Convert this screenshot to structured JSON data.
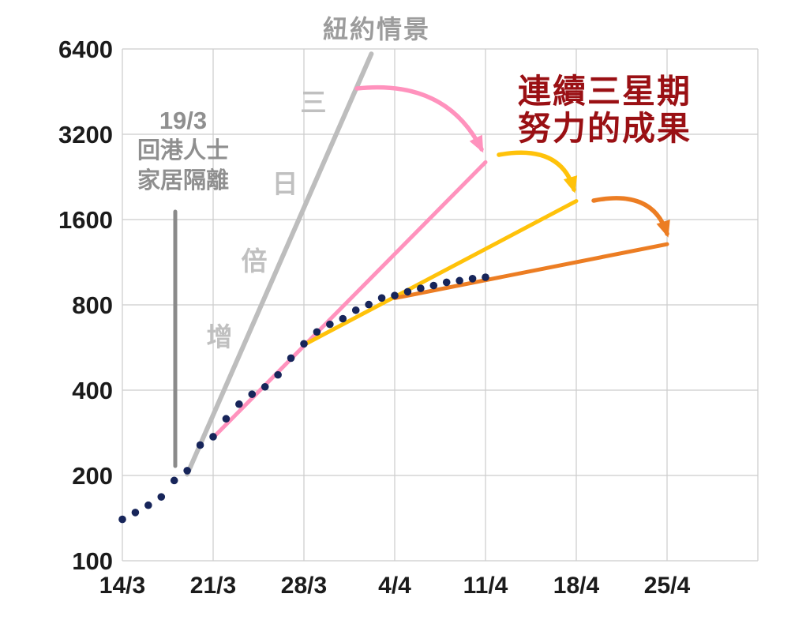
{
  "chart_data": {
    "type": "line",
    "title": "紐約情景",
    "x_axis": {
      "tick_labels": [
        "14/3",
        "21/3",
        "28/3",
        "4/4",
        "11/4",
        "18/4",
        "25/4"
      ],
      "tick_days": [
        0,
        7,
        14,
        21,
        28,
        35,
        42
      ],
      "domain_days": [
        0,
        49
      ]
    },
    "y_axis": {
      "scale": "log2",
      "ticks": [
        100,
        200,
        400,
        800,
        1600,
        3200,
        6400
      ],
      "domain": [
        100,
        6400
      ]
    },
    "grid": true,
    "series": [
      {
        "name": "confirmed-cases-dots",
        "kind": "scatter",
        "color": "#17255a",
        "start_day": 0,
        "values": [
          140,
          148,
          157,
          168,
          192,
          208,
          256,
          274,
          317,
          357,
          387,
          411,
          453,
          519,
          583,
          642,
          683,
          715,
          766,
          802,
          846,
          863,
          890,
          915,
          936,
          961,
          974,
          990,
          1001
        ]
      },
      {
        "name": "ny-scenario-3-day-doubling",
        "kind": "line",
        "color": "#bdbdbd",
        "width": 6,
        "points": [
          {
            "day": 5,
            "value": 202
          },
          {
            "day": 19.2,
            "value": 6150
          }
        ]
      },
      {
        "name": "week-1-trend",
        "kind": "line",
        "color": "#ff92bd",
        "width": 5,
        "points": [
          {
            "day": 7,
            "value": 272
          },
          {
            "day": 28,
            "value": 2550
          }
        ]
      },
      {
        "name": "week-2-trend",
        "kind": "line",
        "color": "#ffc20a",
        "width": 5,
        "points": [
          {
            "day": 14,
            "value": 578
          },
          {
            "day": 35,
            "value": 1860
          }
        ]
      },
      {
        "name": "week-3-trend",
        "kind": "line",
        "color": "#ec7d23",
        "width": 5,
        "points": [
          {
            "day": 21,
            "value": 845
          },
          {
            "day": 42,
            "value": 1310
          }
        ]
      }
    ],
    "annotations": {
      "ny_line_label": "三日倍增",
      "quarantine": {
        "line1": "19/3",
        "line2": "回港人士",
        "line3": "家居隔離",
        "text_color": "#8f8f8f",
        "marker_color": "#8a8a8a"
      },
      "result": {
        "line1": "連續三星期",
        "line2": "努力的成果",
        "color": "#9a1014"
      }
    },
    "legend": "none"
  }
}
